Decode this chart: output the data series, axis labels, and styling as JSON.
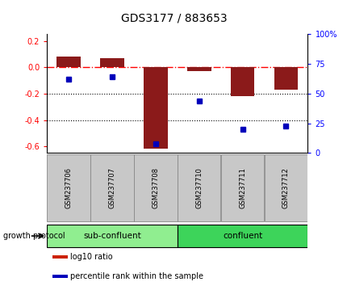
{
  "title": "GDS3177 / 883653",
  "samples": [
    "GSM237706",
    "GSM237707",
    "GSM237708",
    "GSM237710",
    "GSM237711",
    "GSM237712"
  ],
  "log10_ratio": [
    0.08,
    0.07,
    -0.62,
    -0.03,
    -0.22,
    -0.17
  ],
  "percentile_rank": [
    62,
    64,
    8,
    44,
    20,
    23
  ],
  "group_label": "growth protocol",
  "group1_label": "sub-confluent",
  "group1_color": "#90EE90",
  "group1_samples": [
    0,
    1,
    2
  ],
  "group2_label": "confluent",
  "group2_color": "#3DD45A",
  "group2_samples": [
    3,
    4,
    5
  ],
  "bar_color": "#8B1A1A",
  "dot_color": "#0000BB",
  "ylim_left": [
    -0.65,
    0.25
  ],
  "ylim_right": [
    0,
    100
  ],
  "yticks_left": [
    0.2,
    0.0,
    -0.2,
    -0.4,
    -0.6
  ],
  "yticks_right": [
    100,
    75,
    50,
    25,
    0
  ],
  "hline_y": 0.0,
  "dotted_lines": [
    -0.2,
    -0.4
  ],
  "bar_width": 0.55,
  "legend_items": [
    {
      "label": "log10 ratio",
      "color": "#CC2200"
    },
    {
      "label": "percentile rank within the sample",
      "color": "#0000BB"
    }
  ],
  "bg_color": "#FFFFFF",
  "tick_label_bg": "#C8C8C8",
  "tick_label_border": "#888888"
}
